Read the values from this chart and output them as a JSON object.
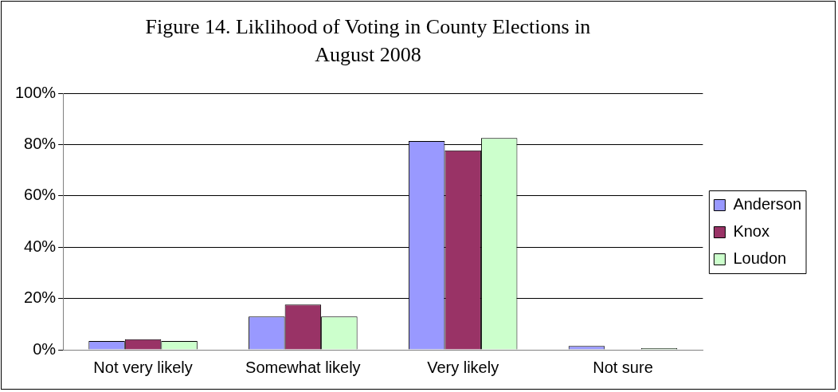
{
  "chart_data": {
    "type": "bar",
    "title": "Figure 14. Liklihood of Voting in County Elections in August 2008",
    "categories": [
      "Not very likely",
      "Somewhat likely",
      "Very likely",
      "Not sure"
    ],
    "series": [
      {
        "name": "Anderson",
        "color": "#9999ff",
        "values": [
          3.4,
          13,
          81.4,
          1.5
        ]
      },
      {
        "name": "Knox",
        "color": "#993366",
        "values": [
          4.1,
          17.6,
          77.7,
          0
        ]
      },
      {
        "name": "Loudon",
        "color": "#ccffcc",
        "values": [
          3.4,
          13,
          82.5,
          0.6
        ]
      }
    ],
    "ylim": [
      0,
      100
    ],
    "yticks": [
      {
        "value": 0,
        "label": "0%"
      },
      {
        "value": 20,
        "label": "20%"
      },
      {
        "value": 40,
        "label": "40%"
      },
      {
        "value": 60,
        "label": "60%"
      },
      {
        "value": 80,
        "label": "80%"
      },
      {
        "value": 100,
        "label": "100%"
      }
    ],
    "grid": "y",
    "legend": "right"
  }
}
